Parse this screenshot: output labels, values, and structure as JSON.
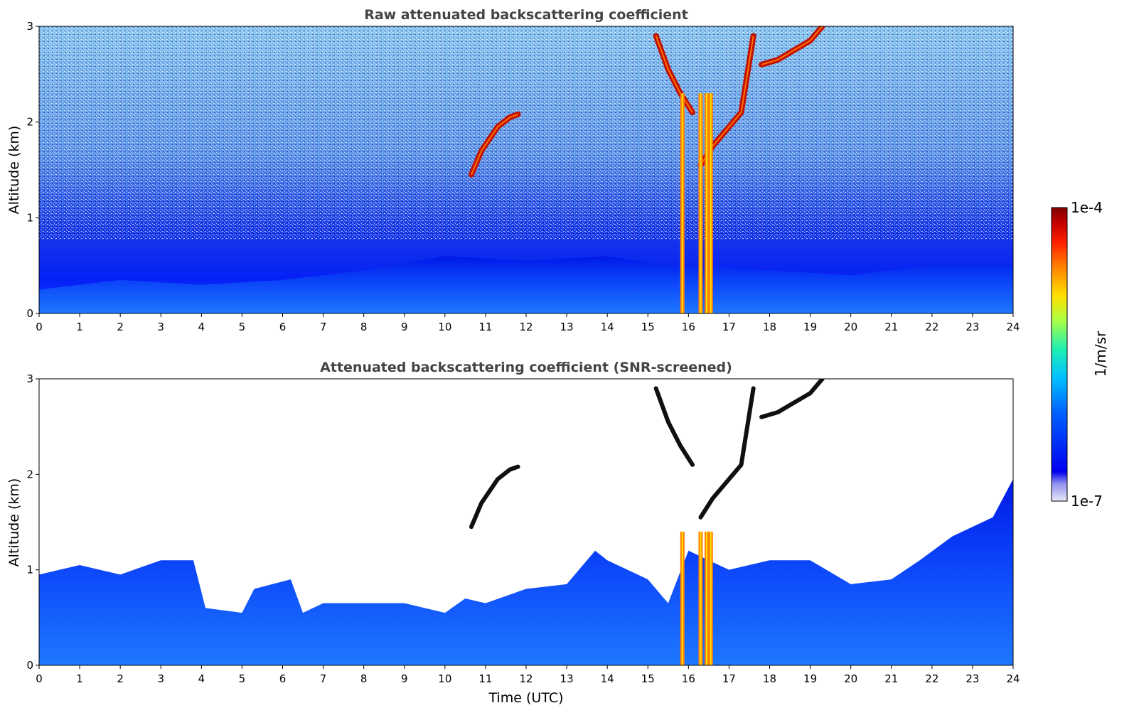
{
  "chart_data": [
    {
      "type": "heatmap",
      "title": "Raw attenuated backscattering coefficient",
      "xlabel": "",
      "ylabel": "Altitude (km)",
      "xlim": [
        0,
        24
      ],
      "ylim": [
        0,
        3
      ],
      "xticks": [
        "0",
        "1",
        "2",
        "3",
        "4",
        "5",
        "6",
        "7",
        "8",
        "9",
        "10",
        "11",
        "12",
        "13",
        "14",
        "15",
        "16",
        "17",
        "18",
        "19",
        "20",
        "21",
        "22",
        "23",
        "24"
      ],
      "yticks": [
        "0",
        "1",
        "2",
        "3"
      ],
      "features": {
        "boundary_layer_top_km": [
          [
            0,
            0.25
          ],
          [
            2,
            0.35
          ],
          [
            4,
            0.3
          ],
          [
            6,
            0.35
          ],
          [
            8,
            0.45
          ],
          [
            10,
            0.6
          ],
          [
            12,
            0.55
          ],
          [
            14,
            0.6
          ],
          [
            15.5,
            0.5
          ],
          [
            18,
            0.45
          ],
          [
            20,
            0.4
          ],
          [
            22,
            0.5
          ],
          [
            24,
            0.5
          ]
        ],
        "cloud_layers": [
          {
            "name": "",
            "points": [
              [
                10.65,
                1.45
              ],
              [
                10.9,
                1.7
              ],
              [
                11.3,
                1.95
              ],
              [
                11.6,
                2.05
              ],
              [
                11.8,
                2.08
              ]
            ]
          },
          {
            "name": "",
            "points": [
              [
                15.2,
                2.9
              ],
              [
                15.5,
                2.55
              ],
              [
                15.8,
                2.3
              ],
              [
                16.1,
                2.1
              ]
            ]
          },
          {
            "name": "",
            "points": [
              [
                16.3,
                1.55
              ],
              [
                16.6,
                1.75
              ],
              [
                17.0,
                1.95
              ],
              [
                17.3,
                2.1
              ],
              [
                17.6,
                2.9
              ]
            ]
          },
          {
            "name": "",
            "points": [
              [
                17.8,
                2.6
              ],
              [
                18.2,
                2.65
              ],
              [
                18.6,
                2.75
              ],
              [
                19.0,
                2.85
              ],
              [
                19.3,
                3.0
              ]
            ]
          }
        ],
        "precipitation_streaks_utc": [
          15.85,
          16.3,
          16.45,
          16.55
        ]
      }
    },
    {
      "type": "heatmap",
      "title": "Attenuated backscattering coefficient (SNR-screened)",
      "xlabel": "Time (UTC)",
      "ylabel": "Altitude (km)",
      "xlim": [
        0,
        24
      ],
      "ylim": [
        0,
        3
      ],
      "xticks": [
        "0",
        "1",
        "2",
        "3",
        "4",
        "5",
        "6",
        "7",
        "8",
        "9",
        "10",
        "11",
        "12",
        "13",
        "14",
        "15",
        "16",
        "17",
        "18",
        "19",
        "20",
        "21",
        "22",
        "23",
        "24"
      ],
      "yticks": [
        "0",
        "1",
        "2",
        "3"
      ],
      "features": {
        "signal_top_km": [
          [
            0,
            0.95
          ],
          [
            1,
            1.05
          ],
          [
            2,
            0.95
          ],
          [
            3,
            1.1
          ],
          [
            3.8,
            1.1
          ],
          [
            4.1,
            0.6
          ],
          [
            5,
            0.55
          ],
          [
            5.3,
            0.8
          ],
          [
            6.2,
            0.9
          ],
          [
            6.5,
            0.55
          ],
          [
            7,
            0.65
          ],
          [
            8,
            0.65
          ],
          [
            9,
            0.65
          ],
          [
            10,
            0.55
          ],
          [
            10.5,
            0.7
          ],
          [
            11,
            0.65
          ],
          [
            12,
            0.8
          ],
          [
            13,
            0.85
          ],
          [
            13.7,
            1.2
          ],
          [
            14,
            1.1
          ],
          [
            15,
            0.9
          ],
          [
            15.5,
            0.65
          ],
          [
            16,
            1.2
          ],
          [
            17,
            1.0
          ],
          [
            18,
            1.1
          ],
          [
            19,
            1.1
          ],
          [
            20,
            0.85
          ],
          [
            21,
            0.9
          ],
          [
            21.7,
            1.1
          ],
          [
            22.5,
            1.35
          ],
          [
            23.5,
            1.55
          ],
          [
            24,
            1.95
          ]
        ]
      }
    }
  ],
  "colorbar": {
    "label": "1/m/sr",
    "max_label": "1e-4",
    "min_label": "1e-7",
    "colors": [
      "#e8e8f8",
      "#b8b8f0",
      "#6060f0",
      "#0000f0",
      "#0050ff",
      "#00a0ff",
      "#00e0e0",
      "#40ff90",
      "#c0ff30",
      "#ffe000",
      "#ff8000",
      "#ff2000",
      "#c00000",
      "#800000"
    ]
  }
}
